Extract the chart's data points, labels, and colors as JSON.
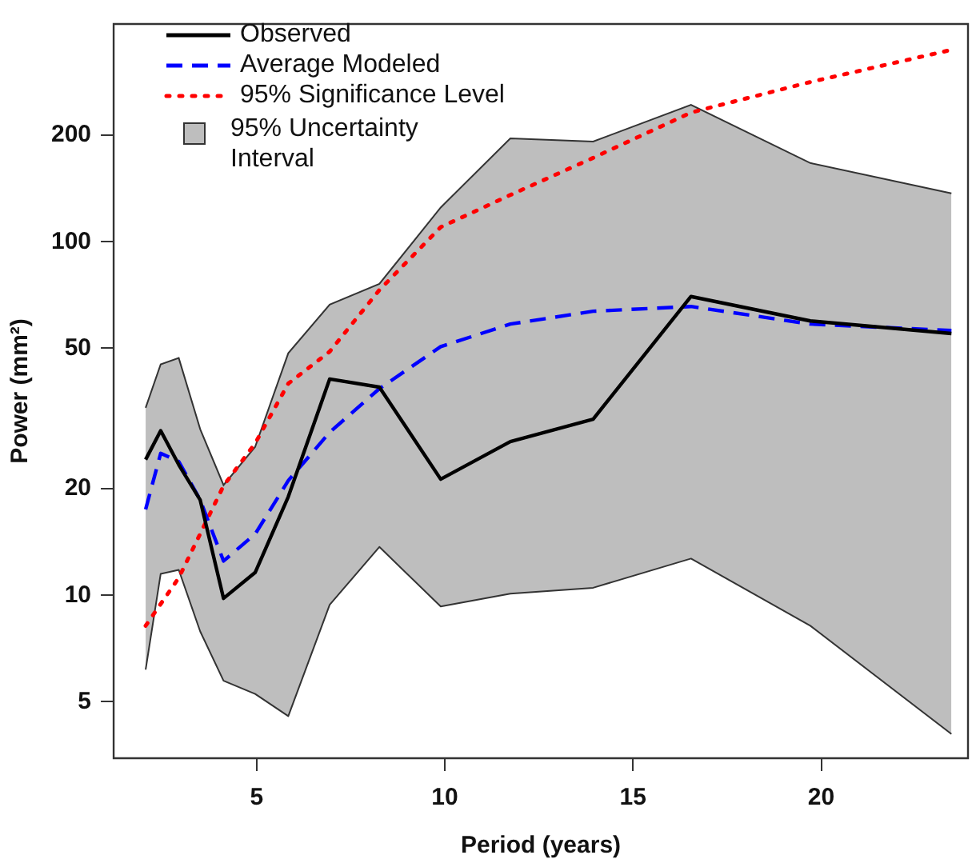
{
  "chart_data": {
    "type": "line",
    "xlabel": "Period (years)",
    "ylabel": "Power (mm²)",
    "log": "y",
    "legend": "top left",
    "grid": false,
    "x": [
      2.05,
      2.45,
      2.93,
      3.5,
      4.12,
      4.96,
      5.84,
      6.94,
      8.26,
      9.89,
      11.74,
      13.94,
      16.54,
      19.71,
      23.46
    ],
    "xlim": [
      1.2,
      23.9
    ],
    "xticks": [
      5,
      10,
      15,
      20
    ],
    "ylim": [
      3.46,
      413
    ],
    "yticks": [
      5,
      10,
      20,
      50,
      100,
      200
    ],
    "series": [
      {
        "name": "Observed",
        "color": "#000000",
        "line_style": "solid",
        "values": [
          24.2,
          29.2,
          23.4,
          18.6,
          9.8,
          11.6,
          19,
          40.9,
          38.8,
          21.3,
          27.2,
          31.5,
          70,
          59.7,
          55
        ]
      },
      {
        "name": "Average Modeled",
        "color": "#0000ff",
        "line_style": "dashed",
        "values": [
          17.5,
          25.2,
          23.9,
          18.6,
          12.5,
          14.9,
          21.1,
          28.9,
          38.4,
          50.5,
          58.5,
          63.6,
          65.6,
          58.5,
          56.1
        ]
      },
      {
        "name": "95% Significance Level",
        "color": "#ff0000",
        "line_style": "dotted",
        "values": [
          8.2,
          null,
          11.2,
          null,
          20.4,
          26.9,
          39.7,
          48.9,
          73,
          110,
          135.6,
          172.7,
          232,
          283,
          349
        ]
      },
      {
        "type": "line",
        "color": "#333333",
        "values": [
          6.16,
          11.5,
          11.8,
          7.9,
          5.73,
          5.26,
          4.55,
          9.4,
          13.7,
          9.3,
          10.1,
          10.5,
          12.7,
          8.2,
          4.05
        ]
      },
      {
        "name": "95% Uncertainty Interval",
        "type": "area",
        "color": "#bebebe",
        "values": [
          33.9,
          45,
          46.9,
          29.5,
          20.5,
          26.3,
          48.4,
          66.4,
          76,
          125,
          196,
          192,
          244,
          167,
          137
        ]
      }
    ]
  }
}
